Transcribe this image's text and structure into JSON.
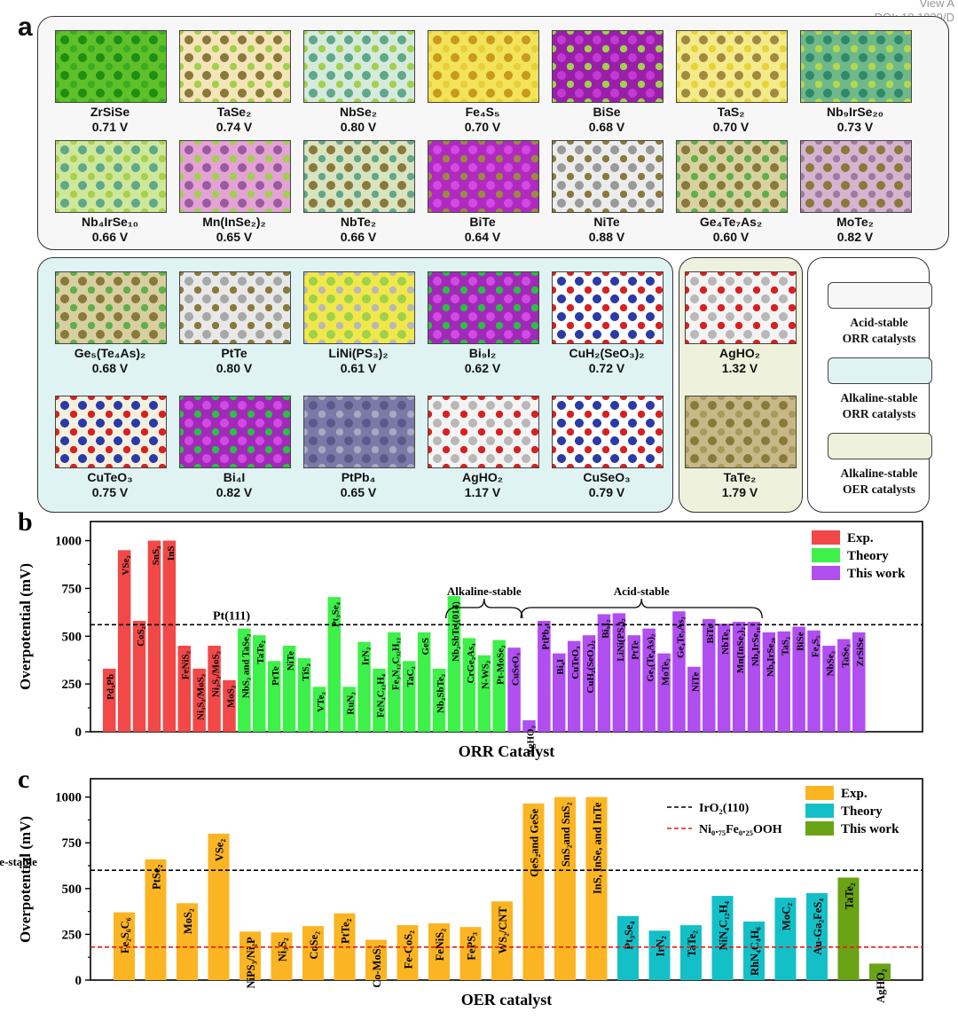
{
  "header": {
    "view_label": "View A",
    "doi": "DOI: 10.1039/D"
  },
  "panel_a": {
    "letter": "a",
    "tiles": [
      {
        "name": "ZrSiSe",
        "value": "0.71 V",
        "palette": [
          "#5fc02a",
          "#1e8f12",
          "#3aad20"
        ]
      },
      {
        "name": "TaSe₂",
        "value": "0.74 V",
        "palette": [
          "#f5e4b8",
          "#8a7a3a",
          "#9fd14a"
        ]
      },
      {
        "name": "NbSe₂",
        "value": "0.80 V",
        "palette": [
          "#d6eadb",
          "#5fa88a",
          "#9fd14a"
        ]
      },
      {
        "name": "Fe₄S₅",
        "value": "0.70 V",
        "palette": [
          "#f2e35a",
          "#c99a1c",
          "#e8cf3a"
        ]
      },
      {
        "name": "BiSe",
        "value": "0.68 V",
        "palette": [
          "#9a1fa8",
          "#c23ad3",
          "#9fd14a"
        ]
      },
      {
        "name": "TaS₂",
        "value": "0.70 V",
        "palette": [
          "#f3ea8a",
          "#a08a40",
          "#e6d33a"
        ]
      },
      {
        "name": "Nb₉IrSe₂₀",
        "value": "0.73 V",
        "palette": [
          "#6fb88a",
          "#2f8a6a",
          "#b5d84a"
        ]
      },
      {
        "name": "Nb₄IrSe₁₀",
        "value": "0.66 V",
        "palette": [
          "#cfe79a",
          "#5fa88a",
          "#a8d14a"
        ]
      },
      {
        "name": "Mn(InSe₂)₂",
        "value": "0.65 V",
        "palette": [
          "#e3a3d3",
          "#9a5aa0",
          "#9fd14a"
        ]
      },
      {
        "name": "NbTe₂",
        "value": "0.66 V",
        "palette": [
          "#d9e3c0",
          "#8a7a3a",
          "#5fa88a"
        ]
      },
      {
        "name": "BiTe",
        "value": "0.64 V",
        "palette": [
          "#b02ac0",
          "#d24ae3",
          "#9a8a40"
        ]
      },
      {
        "name": "NiTe",
        "value": "0.88 V",
        "palette": [
          "#ececec",
          "#9a9a9a",
          "#8a7a3a"
        ]
      },
      {
        "name": "Ge₄Te₇As₂",
        "value": "0.60 V",
        "palette": [
          "#d8d2a0",
          "#8a7a3a",
          "#5fb04a"
        ]
      },
      {
        "name": "MoTe₂",
        "value": "0.82 V",
        "palette": [
          "#d6b4d0",
          "#8a7a3a",
          "#a07aa0"
        ]
      }
    ]
  },
  "panel_mid": {
    "tiles": [
      {
        "name": "Ge₅(Te₄As)₂",
        "value": "0.68 V",
        "palette": [
          "#d8cfa0",
          "#8a7a3a",
          "#5fb04a"
        ]
      },
      {
        "name": "PtTe",
        "value": "0.80 V",
        "palette": [
          "#e8e8e8",
          "#a8a8a8",
          "#8a7a3a"
        ]
      },
      {
        "name": "LiNi(PS₃)₂",
        "value": "0.61 V",
        "palette": [
          "#f0e84a",
          "#9fd14a",
          "#b8b8b8"
        ]
      },
      {
        "name": "Bi₉I₂",
        "value": "0.62 V",
        "palette": [
          "#a02ab8",
          "#d24ae3",
          "#2ac040"
        ]
      },
      {
        "name": "CuH₂(SeO₃)₂",
        "value": "0.72 V",
        "palette": [
          "#ffffff",
          "#2a3aa8",
          "#d82020"
        ]
      },
      {
        "name": "CuTeO₃",
        "value": "0.75 V",
        "palette": [
          "#f4f0e0",
          "#2a3aa8",
          "#d82020"
        ]
      },
      {
        "name": "Bi₄I",
        "value": "0.82 V",
        "palette": [
          "#a02ab8",
          "#d24ae3",
          "#2ac040"
        ]
      },
      {
        "name": "PtPb₄",
        "value": "0.65 V",
        "palette": [
          "#7a7aa8",
          "#5a5a8a",
          "#a8a8c0"
        ]
      },
      {
        "name": "AgHO₂",
        "value": "1.17 V",
        "palette": [
          "#f4f4f4",
          "#b8b8b8",
          "#d82020"
        ]
      },
      {
        "name": "CuSeO₃",
        "value": "0.79 V",
        "palette": [
          "#ffffff",
          "#2a3aa8",
          "#d82020"
        ]
      }
    ],
    "oer_tiles": [
      {
        "name": "AgHO₂",
        "value": "1.32 V",
        "palette": [
          "#f4f4f4",
          "#b8b8b8",
          "#d82020"
        ]
      },
      {
        "name": "TaTe₂",
        "value": "1.79 V",
        "palette": [
          "#c8b888",
          "#8a7a3a",
          "#a89a5a"
        ]
      }
    ],
    "legend": [
      {
        "line1": "Acid-stable",
        "line2": "ORR catalysts",
        "color": "#f7f7f7"
      },
      {
        "line1": "Alkaline-stable",
        "line2": "ORR catalysts",
        "color": "#dff3f3"
      },
      {
        "line1": "Alkaline-stable",
        "line2": "OER catalysts",
        "color": "#eef2dd"
      }
    ]
  },
  "colors": {
    "acid_box": "#f7f7f7",
    "alk_orr_box": "#dff3f3",
    "alk_oer_box": "#eef2dd",
    "exp_b": "#f24848",
    "theory_b": "#3ef04a",
    "thiswork_b": "#b04ef0",
    "exp_c": "#fbb522",
    "theory_c": "#14c0c8",
    "thiswork_c": "#6aa316"
  },
  "chart_data": [
    {
      "panel": "b",
      "type": "bar",
      "title": "",
      "xlabel": "ORR Catalyst",
      "ylabel": "Overpotential (mV)",
      "ylim": [
        0,
        1100
      ],
      "yticks": [
        0,
        250,
        500,
        750,
        1000
      ],
      "legend": [
        {
          "name": "Exp.",
          "group": "exp"
        },
        {
          "name": "Theory",
          "group": "theory"
        },
        {
          "name": "This work",
          "group": "thiswork"
        }
      ],
      "reference_lines": [
        {
          "label": "Pt(111)",
          "value": 560,
          "style": "black-dashed"
        }
      ],
      "brackets": [
        {
          "label": "Alkaline-stable",
          "from": 23,
          "to": 27
        },
        {
          "label": "Acid-stable",
          "from": 28,
          "to": 43
        }
      ],
      "bars": [
        {
          "label": "Pd₃Pb",
          "value": 330,
          "group": "exp"
        },
        {
          "label": "VSe₂",
          "value": 950,
          "group": "exp"
        },
        {
          "label": "CoS₂",
          "value": 580,
          "group": "exp"
        },
        {
          "label": "SnS₂",
          "value": 1000,
          "group": "exp"
        },
        {
          "label": "InS",
          "value": 1000,
          "group": "exp"
        },
        {
          "label": "FeNiS₂",
          "value": 450,
          "group": "exp"
        },
        {
          "label": "Ni₃S₂/MoS₂",
          "value": 330,
          "group": "exp"
        },
        {
          "label": "Ni₃S₂/MoS₂",
          "value": 450,
          "group": "exp"
        },
        {
          "label": "MoS₂",
          "value": 270,
          "group": "exp"
        },
        {
          "label": "NbS₂ and TaSe₂",
          "value": 540,
          "group": "theory"
        },
        {
          "label": "TaTe₂",
          "value": 505,
          "group": "theory"
        },
        {
          "label": "PtTe",
          "value": 370,
          "group": "theory"
        },
        {
          "label": "NiTe",
          "value": 450,
          "group": "theory"
        },
        {
          "label": "TiS₂",
          "value": 385,
          "group": "theory"
        },
        {
          "label": "VTe₂",
          "value": 235,
          "group": "theory"
        },
        {
          "label": "Pt₃Se₄",
          "value": 705,
          "group": "theory"
        },
        {
          "label": "RuN₂",
          "value": 235,
          "group": "theory"
        },
        {
          "label": "IrN₂",
          "value": 470,
          "group": "theory"
        },
        {
          "label": "FeN₄C₁₂H₄",
          "value": 330,
          "group": "theory"
        },
        {
          "label": "Fe₃N₁₂C₃₂H₁₂",
          "value": 520,
          "group": "theory"
        },
        {
          "label": "TaC₂",
          "value": 370,
          "group": "theory"
        },
        {
          "label": "GeS",
          "value": 520,
          "group": "theory"
        },
        {
          "label": "Nb₂SbTe₂",
          "value": 330,
          "group": "theory"
        },
        {
          "label": "Nb₂SbTe₂(014)",
          "value": 710,
          "group": "theory"
        },
        {
          "label": "CrGe₂As₄",
          "value": 490,
          "group": "theory"
        },
        {
          "label": "N-WS₂",
          "value": 400,
          "group": "theory"
        },
        {
          "label": "Pt-MoSe₂",
          "value": 480,
          "group": "theory"
        },
        {
          "label": "CuSeO₃",
          "value": 440,
          "group": "thiswork"
        },
        {
          "label": "AgHO₂",
          "value": 60,
          "group": "thiswork"
        },
        {
          "label": "PtPb₄",
          "value": 580,
          "group": "thiswork"
        },
        {
          "label": "Bi₄I",
          "value": 410,
          "group": "thiswork"
        },
        {
          "label": "CuTeO₃",
          "value": 475,
          "group": "thiswork"
        },
        {
          "label": "CuH₂(SeO₃)₂",
          "value": 505,
          "group": "thiswork"
        },
        {
          "label": "Bi₉I₂",
          "value": 615,
          "group": "thiswork"
        },
        {
          "label": "LiNi(PS₃)₂",
          "value": 620,
          "group": "thiswork"
        },
        {
          "label": "PtTe",
          "value": 505,
          "group": "thiswork"
        },
        {
          "label": "Ge₅(Te₄As)₂",
          "value": 540,
          "group": "thiswork"
        },
        {
          "label": "MoTe₂",
          "value": 410,
          "group": "thiswork"
        },
        {
          "label": "Ge₄Te₇As₂",
          "value": 630,
          "group": "thiswork"
        },
        {
          "label": "NiTe",
          "value": 340,
          "group": "thiswork"
        },
        {
          "label": "BiTe",
          "value": 590,
          "group": "thiswork"
        },
        {
          "label": "NbTe₂",
          "value": 565,
          "group": "thiswork"
        },
        {
          "label": "Mn(InSe₂)₂",
          "value": 575,
          "group": "thiswork"
        },
        {
          "label": "Nb₄IrSe₁₀",
          "value": 575,
          "group": "thiswork"
        },
        {
          "label": "Nb₉IrSe₂₀",
          "value": 520,
          "group": "thiswork"
        },
        {
          "label": "TaS₂",
          "value": 525,
          "group": "thiswork"
        },
        {
          "label": "BiSe",
          "value": 550,
          "group": "thiswork"
        },
        {
          "label": "Fe₄S₅",
          "value": 530,
          "group": "thiswork"
        },
        {
          "label": "NbSe₂",
          "value": 450,
          "group": "thiswork"
        },
        {
          "label": "TaSe₂",
          "value": 485,
          "group": "thiswork"
        },
        {
          "label": "ZrSiSe",
          "value": 520,
          "group": "thiswork"
        }
      ]
    },
    {
      "panel": "c",
      "type": "bar",
      "title": "",
      "xlabel": "OER catalyst",
      "ylabel": "Overpotential (mV)",
      "ylim": [
        0,
        1100
      ],
      "yticks": [
        0,
        250,
        500,
        750,
        1000
      ],
      "legend": [
        {
          "name": "Exp.",
          "group": "exp"
        },
        {
          "name": "Theory",
          "group": "theory"
        },
        {
          "name": "This work",
          "group": "thiswork"
        }
      ],
      "reference_lines": [
        {
          "label": "IrO₂(110)",
          "value": 600,
          "style": "black-dashed"
        },
        {
          "label": "Ni₀.₇₅Fe₀.₂₅OOH",
          "value": 180,
          "style": "red-dashed"
        }
      ],
      "brackets": [
        {
          "label": "Alkaline-stable",
          "from": 26,
          "to": 27
        }
      ],
      "bars": [
        {
          "label": "Fe₂S₆C₆",
          "value": 370,
          "group": "exp"
        },
        {
          "label": "PtSe₂",
          "value": 660,
          "group": "exp"
        },
        {
          "label": "MoS₂",
          "value": 420,
          "group": "exp"
        },
        {
          "label": "VSe₂",
          "value": 800,
          "group": "exp"
        },
        {
          "label": "NiPS₃/Ni₂P",
          "value": 265,
          "group": "exp"
        },
        {
          "label": "Ni₃S₂",
          "value": 260,
          "group": "exp"
        },
        {
          "label": "CoSe₂",
          "value": 295,
          "group": "exp"
        },
        {
          "label": "PtTe₂",
          "value": 365,
          "group": "exp"
        },
        {
          "label": "Co-MoS₂",
          "value": 220,
          "group": "exp"
        },
        {
          "label": "Fe-CoS₂",
          "value": 300,
          "group": "exp"
        },
        {
          "label": "FeNiS₂",
          "value": 310,
          "group": "exp"
        },
        {
          "label": "FePS₃",
          "value": 290,
          "group": "exp"
        },
        {
          "label": "WS₂/CNT",
          "value": 430,
          "group": "exp"
        },
        {
          "label": "GeS₂and GeSe",
          "value": 965,
          "group": "exp"
        },
        {
          "label": "SnS₂and SnS₂",
          "value": 1000,
          "group": "exp"
        },
        {
          "label": "InS, InSe, and InTe",
          "value": 1000,
          "group": "exp"
        },
        {
          "label": "Pt₃Se₄",
          "value": 350,
          "group": "theory"
        },
        {
          "label": "IrN₂",
          "value": 270,
          "group": "theory"
        },
        {
          "label": "TaTe₂",
          "value": 300,
          "group": "theory"
        },
        {
          "label": "NiN₄C₁₂H₄",
          "value": 460,
          "group": "theory"
        },
        {
          "label": "RhN₄C₄H₆",
          "value": 320,
          "group": "theory"
        },
        {
          "label": "MoC₂",
          "value": 450,
          "group": "theory"
        },
        {
          "label": "Au-Ga₂FeS₄",
          "value": 475,
          "group": "theory"
        },
        {
          "label": "TaTe₂",
          "value": 560,
          "group": "thiswork"
        },
        {
          "label": "AgHO₂",
          "value": 90,
          "group": "thiswork"
        }
      ]
    }
  ]
}
